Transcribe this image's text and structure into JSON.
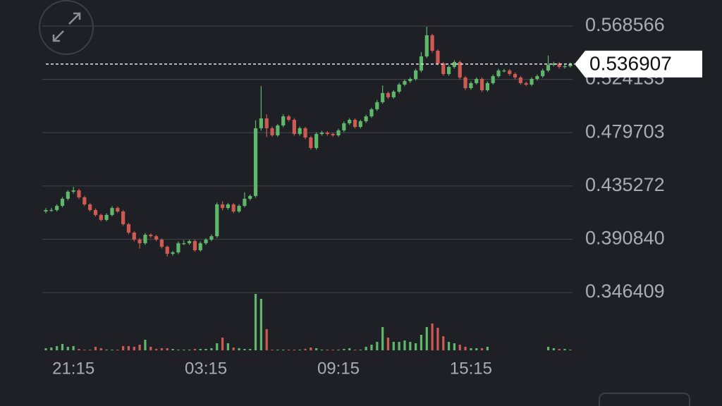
{
  "chart_data": {
    "type": "candlestick",
    "last_price": 0.536907,
    "ylim": [
      0.2965,
      0.5903
    ],
    "yticks": [
      0.568566,
      0.524135,
      0.479703,
      0.435272,
      {
        "value": 0.39084,
        "label": "0.390840"
      },
      0.346409
    ],
    "grid": true,
    "up_color": "#5fb86a",
    "down_color": "#cf5a52",
    "categories": [
      null,
      null,
      null,
      null,
      null,
      "21:15",
      null,
      null,
      null,
      null,
      null,
      null,
      null,
      null,
      null,
      null,
      null,
      null,
      null,
      null,
      null,
      null,
      null,
      null,
      null,
      null,
      null,
      null,
      null,
      "03:15",
      null,
      null,
      null,
      null,
      null,
      null,
      null,
      null,
      null,
      null,
      null,
      null,
      null,
      null,
      null,
      null,
      null,
      null,
      null,
      null,
      null,
      null,
      null,
      "09:15",
      null,
      null,
      null,
      null,
      null,
      null,
      null,
      null,
      null,
      null,
      null,
      null,
      null,
      null,
      null,
      null,
      null,
      null,
      null,
      null,
      null,
      null,
      null,
      "15:15",
      null,
      null,
      null,
      null,
      null,
      null,
      null,
      null,
      null,
      null,
      null,
      null,
      null,
      null,
      null,
      null,
      null,
      null
    ],
    "ohlc": [
      [
        0.414,
        0.4168,
        0.4125,
        0.4152
      ],
      [
        0.4152,
        0.417,
        0.4138,
        0.4152
      ],
      [
        0.4152,
        0.42,
        0.414,
        0.4187
      ],
      [
        0.4187,
        0.426,
        0.4175,
        0.4246
      ],
      [
        0.4246,
        0.4318,
        0.4232,
        0.4305
      ],
      [
        0.4305,
        0.4345,
        0.429,
        0.4316
      ],
      [
        0.4316,
        0.433,
        0.4245,
        0.4258
      ],
      [
        0.4258,
        0.427,
        0.4185,
        0.4199
      ],
      [
        0.4199,
        0.421,
        0.414,
        0.4152
      ],
      [
        0.4152,
        0.4165,
        0.4098,
        0.4111
      ],
      [
        0.4111,
        0.4122,
        0.4058,
        0.407
      ],
      [
        0.407,
        0.4125,
        0.4058,
        0.4111
      ],
      [
        0.4111,
        0.4185,
        0.41,
        0.4169
      ],
      [
        0.4169,
        0.4182,
        0.4128,
        0.414
      ],
      [
        0.414,
        0.4152,
        0.402,
        0.4034
      ],
      [
        0.4034,
        0.4045,
        0.395,
        0.3964
      ],
      [
        0.3964,
        0.3975,
        0.389,
        0.3905
      ],
      [
        0.3905,
        0.3918,
        0.383,
        0.3875
      ],
      [
        0.3875,
        0.396,
        0.3862,
        0.3946
      ],
      [
        0.3946,
        0.3958,
        0.392,
        0.3934
      ],
      [
        0.3934,
        0.3945,
        0.3892,
        0.3905
      ],
      [
        0.3905,
        0.3915,
        0.3832,
        0.3846
      ],
      [
        0.3846,
        0.3855,
        0.3765,
        0.3787
      ],
      [
        0.3787,
        0.3812,
        0.3772,
        0.3799
      ],
      [
        0.3799,
        0.389,
        0.3785,
        0.3875
      ],
      [
        0.3875,
        0.39,
        0.386,
        0.3875
      ],
      [
        0.3875,
        0.3905,
        0.3862,
        0.3893
      ],
      [
        0.3893,
        0.3905,
        0.3805,
        0.3817
      ],
      [
        0.3817,
        0.389,
        0.3805,
        0.3875
      ],
      [
        0.3875,
        0.3918,
        0.3862,
        0.3905
      ],
      [
        0.3905,
        0.3948,
        0.3892,
        0.3934
      ],
      [
        0.3934,
        0.4215,
        0.392,
        0.4199
      ],
      [
        0.4199,
        0.4225,
        0.415,
        0.4169
      ],
      [
        0.4169,
        0.4212,
        0.4155,
        0.4199
      ],
      [
        0.4199,
        0.421,
        0.4125,
        0.414
      ],
      [
        0.414,
        0.42,
        0.4128,
        0.4187
      ],
      [
        0.4187,
        0.43,
        0.4175,
        0.4246
      ],
      [
        0.4246,
        0.4282,
        0.4232,
        0.4269
      ],
      [
        0.4269,
        0.49,
        0.4255,
        0.4834
      ],
      [
        0.4834,
        0.5185,
        0.4815,
        0.4916
      ],
      [
        0.4916,
        0.495,
        0.476,
        0.4834
      ],
      [
        0.4834,
        0.4848,
        0.4762,
        0.4775
      ],
      [
        0.4775,
        0.487,
        0.4762,
        0.4857
      ],
      [
        0.4857,
        0.495,
        0.4842,
        0.4933
      ],
      [
        0.4933,
        0.4945,
        0.489,
        0.4904
      ],
      [
        0.4904,
        0.4918,
        0.4772,
        0.4786
      ],
      [
        0.4786,
        0.4848,
        0.4772,
        0.4834
      ],
      [
        0.4834,
        0.4846,
        0.4742,
        0.4757
      ],
      [
        0.4757,
        0.477,
        0.4655,
        0.4669
      ],
      [
        0.4669,
        0.48,
        0.4655,
        0.4786
      ],
      [
        0.4786,
        0.4812,
        0.4772,
        0.4798
      ],
      [
        0.4798,
        0.481,
        0.4772,
        0.4786
      ],
      [
        0.4786,
        0.4798,
        0.4762,
        0.4775
      ],
      [
        0.4775,
        0.483,
        0.4762,
        0.4816
      ],
      [
        0.4816,
        0.489,
        0.4802,
        0.4875
      ],
      [
        0.4875,
        0.4918,
        0.4862,
        0.4904
      ],
      [
        0.4904,
        0.4916,
        0.4832,
        0.4845
      ],
      [
        0.4845,
        0.4905,
        0.4832,
        0.4892
      ],
      [
        0.4892,
        0.4946,
        0.4878,
        0.4933
      ],
      [
        0.4933,
        0.5005,
        0.492,
        0.4992
      ],
      [
        0.4992,
        0.507,
        0.4978,
        0.5051
      ],
      [
        0.5051,
        0.519,
        0.5038,
        0.5127
      ],
      [
        0.5127,
        0.514,
        0.5078,
        0.5092
      ],
      [
        0.5092,
        0.5152,
        0.508,
        0.5139
      ],
      [
        0.5139,
        0.5212,
        0.5125,
        0.5198
      ],
      [
        0.5198,
        0.524,
        0.5185,
        0.5227
      ],
      [
        0.5227,
        0.5258,
        0.5212,
        0.5245
      ],
      [
        0.5245,
        0.533,
        0.5232,
        0.5315
      ],
      [
        0.5315,
        0.547,
        0.53,
        0.5433
      ],
      [
        0.5433,
        0.568,
        0.542,
        0.5609
      ],
      [
        0.5609,
        0.5622,
        0.5465,
        0.548
      ],
      [
        0.548,
        0.5492,
        0.536,
        0.5374
      ],
      [
        0.5374,
        0.5386,
        0.5272,
        0.5286
      ],
      [
        0.5286,
        0.5358,
        0.5272,
        0.5345
      ],
      [
        0.5345,
        0.54,
        0.5332,
        0.5386
      ],
      [
        0.5386,
        0.5398,
        0.5242,
        0.5257
      ],
      [
        0.5257,
        0.527,
        0.5152,
        0.5168
      ],
      [
        0.5168,
        0.5225,
        0.5155,
        0.521
      ],
      [
        0.521,
        0.5258,
        0.5198,
        0.5245
      ],
      [
        0.5245,
        0.5258,
        0.5136,
        0.5151
      ],
      [
        0.5151,
        0.5225,
        0.5138,
        0.521
      ],
      [
        0.521,
        0.5282,
        0.5198,
        0.5268
      ],
      [
        0.5268,
        0.533,
        0.5255,
        0.5315
      ],
      [
        0.5315,
        0.5328,
        0.53,
        0.5315
      ],
      [
        0.5315,
        0.5328,
        0.5272,
        0.5286
      ],
      [
        0.5286,
        0.5298,
        0.5242,
        0.5257
      ],
      [
        0.5257,
        0.527,
        0.5196,
        0.521
      ],
      [
        0.521,
        0.5222,
        0.5185,
        0.5198
      ],
      [
        0.5198,
        0.5258,
        0.5185,
        0.5245
      ],
      [
        0.5245,
        0.5282,
        0.5232,
        0.5268
      ],
      [
        0.5268,
        0.533,
        0.5255,
        0.5315
      ],
      [
        0.5315,
        0.544,
        0.5302,
        0.5362
      ],
      [
        0.5362,
        0.5388,
        0.535,
        0.5374
      ],
      [
        0.5374,
        0.5386,
        0.533,
        0.5345
      ],
      [
        0.5345,
        0.5365,
        0.5332,
        0.5351
      ],
      [
        0.5351,
        0.5382,
        0.534,
        0.536907
      ]
    ],
    "volume": [
      3,
      4,
      6,
      9,
      5,
      6,
      2,
      1,
      1,
      5,
      3,
      1,
      1,
      1,
      6,
      6,
      5,
      8,
      15,
      5,
      2,
      3,
      3,
      2,
      1,
      1,
      1,
      2,
      2,
      2,
      3,
      10,
      18,
      10,
      4,
      3,
      2,
      2,
      80,
      73,
      30,
      1,
      1,
      1,
      1,
      1,
      1,
      2,
      4,
      3,
      1,
      1,
      1,
      1,
      2,
      3,
      1,
      1,
      5,
      8,
      12,
      33,
      18,
      12,
      12,
      14,
      12,
      10,
      22,
      33,
      38,
      32,
      20,
      12,
      10,
      8,
      5,
      3,
      3,
      3,
      5,
      0,
      0,
      0,
      0,
      0,
      0,
      0,
      0,
      0,
      0,
      5,
      3,
      2,
      2,
      1
    ]
  }
}
